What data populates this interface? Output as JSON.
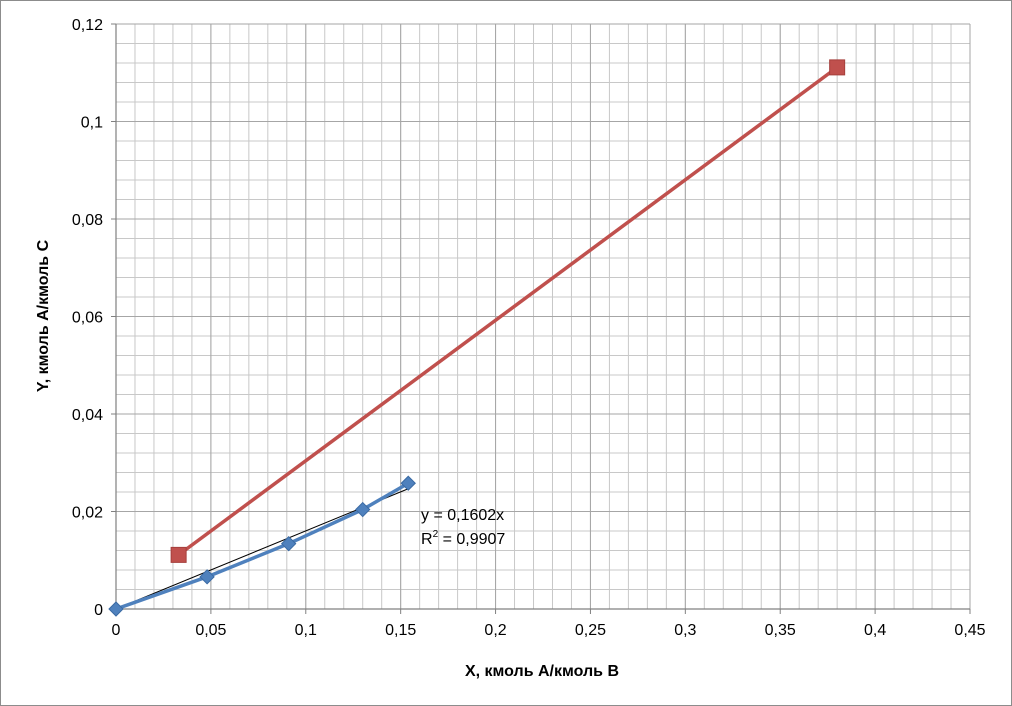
{
  "chart_data": {
    "type": "scatter",
    "xlabel": "X, кмоль A/кмоль B",
    "ylabel": "Y, кмоль A/кмоль C",
    "xlim": [
      0,
      0.45
    ],
    "ylim": [
      0,
      0.12
    ],
    "x_major_ticks": [
      0,
      0.05,
      0.1,
      0.15,
      0.2,
      0.25,
      0.3,
      0.35,
      0.4,
      0.45
    ],
    "x_tick_labels": [
      "0",
      "0,05",
      "0,1",
      "0,15",
      "0,2",
      "0,25",
      "0,3",
      "0,35",
      "0,4",
      "0,45"
    ],
    "y_major_ticks": [
      0,
      0.02,
      0.04,
      0.06,
      0.08,
      0.1,
      0.12
    ],
    "y_tick_labels": [
      "0",
      "0,02",
      "0,04",
      "0,06",
      "0,08",
      "0,1",
      "0,12"
    ],
    "x_minor_step": 0.01,
    "y_minor_step": 0.004,
    "grid": true,
    "legend": "none",
    "series": [
      {
        "marker": "diamond",
        "color": "#4f81bd",
        "x": [
          0,
          0.048,
          0.091,
          0.13,
          0.154
        ],
        "y": [
          0,
          0.0066,
          0.0134,
          0.0204,
          0.0258
        ]
      },
      {
        "marker": "square",
        "color": "#c0504d",
        "x": [
          0.033,
          0.38
        ],
        "y": [
          0.0111,
          0.1111
        ]
      }
    ],
    "trendline": {
      "series_index": 0,
      "slope": 0.1602,
      "x_range": [
        0,
        0.154
      ],
      "color": "#000000",
      "equation_label": "y = 0,1602x",
      "r2_prefix": "R",
      "r2_sup": "2",
      "r2_suffix": " = 0,9907"
    }
  }
}
